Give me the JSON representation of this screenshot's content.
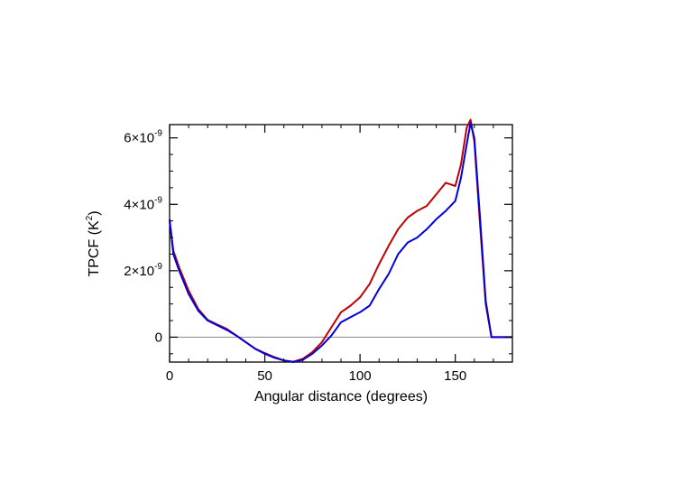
{
  "chart_data": {
    "type": "line",
    "xlabel": "Angular distance (degrees)",
    "ylabel": {
      "base": "TPCF (K",
      "sup": "2",
      "close": ")"
    },
    "xlim": [
      0,
      180
    ],
    "ylim": [
      -7.5e-10,
      6.4e-09
    ],
    "x_ticks": [
      {
        "value": 0,
        "label": "0"
      },
      {
        "value": 50,
        "label": "50"
      },
      {
        "value": 100,
        "label": "100"
      },
      {
        "value": 150,
        "label": "150"
      }
    ],
    "y_ticks": [
      {
        "value": 0,
        "label": "0",
        "sup": ""
      },
      {
        "value": 2e-09,
        "label": "2×10",
        "sup": "-9"
      },
      {
        "value": 4e-09,
        "label": "4×10",
        "sup": "-9"
      },
      {
        "value": 6e-09,
        "label": "6×10",
        "sup": "-9"
      }
    ],
    "zero_line": true,
    "series": [
      {
        "color": "#c00000",
        "x": [
          0,
          2,
          5,
          10,
          15,
          20,
          25,
          30,
          35,
          40,
          45,
          50,
          55,
          60,
          65,
          70,
          75,
          80,
          85,
          90,
          95,
          100,
          105,
          110,
          115,
          120,
          125,
          130,
          135,
          140,
          145,
          150,
          153,
          156,
          158,
          160,
          163,
          166,
          169,
          172,
          175,
          180
        ],
        "y": [
          3.5e-09,
          2.6e-09,
          2.1e-09,
          1.4e-09,
          8.5e-10,
          5.2e-10,
          3.8e-10,
          2.5e-10,
          5e-11,
          -1.5e-10,
          -3.5e-10,
          -4.8e-10,
          -6e-10,
          -7e-10,
          -7.4e-10,
          -6.5e-10,
          -4.5e-10,
          -1.5e-10,
          3e-10,
          7.5e-10,
          9.5e-10,
          1.2e-09,
          1.6e-09,
          2.2e-09,
          2.75e-09,
          3.25e-09,
          3.6e-09,
          3.8e-09,
          3.95e-09,
          4.3e-09,
          4.65e-09,
          4.55e-09,
          5.2e-09,
          6.3e-09,
          6.55e-09,
          5.9e-09,
          3.4e-09,
          1e-09,
          0.0,
          0.0,
          0.0,
          0.0
        ]
      },
      {
        "color": "#0000dd",
        "x": [
          0,
          2,
          5,
          10,
          15,
          20,
          25,
          30,
          35,
          40,
          45,
          50,
          55,
          60,
          65,
          70,
          75,
          80,
          85,
          90,
          95,
          100,
          105,
          110,
          115,
          120,
          125,
          130,
          135,
          140,
          145,
          150,
          153,
          156,
          158,
          160,
          163,
          166,
          169,
          172,
          175,
          180
        ],
        "y": [
          3.55e-09,
          2.5e-09,
          2e-09,
          1.3e-09,
          8e-10,
          5e-10,
          3.6e-10,
          2.2e-10,
          5e-11,
          -1.5e-10,
          -3.5e-10,
          -5e-10,
          -6.2e-10,
          -7e-10,
          -7.5e-10,
          -6.8e-10,
          -5e-10,
          -2.5e-10,
          5e-11,
          4.5e-10,
          6e-10,
          7.5e-10,
          9.5e-10,
          1.45e-09,
          1.9e-09,
          2.5e-09,
          2.85e-09,
          3e-09,
          3.25e-09,
          3.55e-09,
          3.8e-09,
          4.1e-09,
          4.8e-09,
          5.8e-09,
          6.45e-09,
          6e-09,
          3.6e-09,
          1.1e-09,
          0.0,
          0.0,
          0.0,
          0.0
        ]
      }
    ]
  }
}
